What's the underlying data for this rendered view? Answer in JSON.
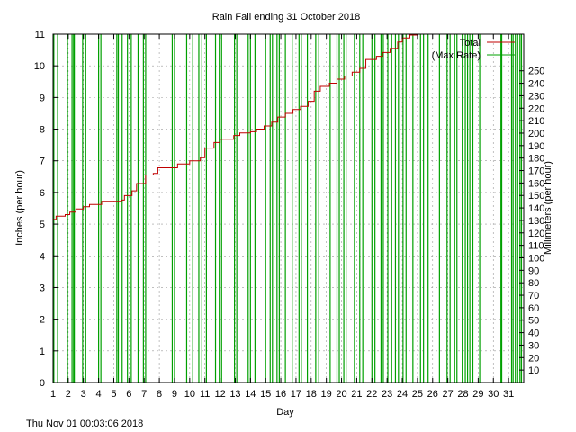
{
  "chart_data": {
    "type": "line",
    "title": "Rain Fall ending 31 October 2018",
    "xlabel": "Day",
    "ylabel": "Inches (per hour)",
    "y2label": "Millimeters (per hour)",
    "xlim": [
      1,
      32
    ],
    "ylim": [
      0,
      11
    ],
    "y2lim": [
      0,
      279.4
    ],
    "x_ticks": [
      "1",
      "2",
      "3",
      "4",
      "5",
      "6",
      "7",
      "8",
      "9",
      "10",
      "11",
      "12",
      "13",
      "14",
      "15",
      "16",
      "17",
      "18",
      "19",
      "20",
      "21",
      "22",
      "23",
      "24",
      "25",
      "26",
      "27",
      "28",
      "29",
      "30",
      "31"
    ],
    "y_ticks": [
      "0",
      "1",
      "2",
      "3",
      "4",
      "5",
      "6",
      "7",
      "8",
      "9",
      "10",
      "11"
    ],
    "y2_ticks": [
      "10",
      "20",
      "30",
      "40",
      "50",
      "60",
      "70",
      "80",
      "90",
      "100",
      "110",
      "120",
      "130",
      "140",
      "150",
      "160",
      "170",
      "180",
      "190",
      "200",
      "210",
      "220",
      "230",
      "240",
      "250"
    ],
    "grid": true,
    "legend_position": "top-right",
    "series": [
      {
        "name": "Total",
        "color": "#c00000",
        "axis": "left",
        "points": [
          [
            1.0,
            5.15
          ],
          [
            1.2,
            5.25
          ],
          [
            1.8,
            5.3
          ],
          [
            2.1,
            5.38
          ],
          [
            2.5,
            5.48
          ],
          [
            3.0,
            5.55
          ],
          [
            3.4,
            5.62
          ],
          [
            4.2,
            5.72
          ],
          [
            5.5,
            5.76
          ],
          [
            5.7,
            5.9
          ],
          [
            6.2,
            6.05
          ],
          [
            6.5,
            6.28
          ],
          [
            7.1,
            6.55
          ],
          [
            7.6,
            6.6
          ],
          [
            7.9,
            6.78
          ],
          [
            9.2,
            6.9
          ],
          [
            10.0,
            7.0
          ],
          [
            10.7,
            7.1
          ],
          [
            11.0,
            7.4
          ],
          [
            11.6,
            7.58
          ],
          [
            12.0,
            7.68
          ],
          [
            12.9,
            7.8
          ],
          [
            13.3,
            7.88
          ],
          [
            14.0,
            7.92
          ],
          [
            14.4,
            8.0
          ],
          [
            14.9,
            8.1
          ],
          [
            15.4,
            8.22
          ],
          [
            15.8,
            8.38
          ],
          [
            16.3,
            8.5
          ],
          [
            16.8,
            8.62
          ],
          [
            17.3,
            8.72
          ],
          [
            17.8,
            8.88
          ],
          [
            18.2,
            9.2
          ],
          [
            18.6,
            9.35
          ],
          [
            19.2,
            9.45
          ],
          [
            19.7,
            9.58
          ],
          [
            20.2,
            9.68
          ],
          [
            20.7,
            9.8
          ],
          [
            21.2,
            9.92
          ],
          [
            21.6,
            10.2
          ],
          [
            22.3,
            10.3
          ],
          [
            22.7,
            10.42
          ],
          [
            23.2,
            10.55
          ],
          [
            23.7,
            10.75
          ],
          [
            24.0,
            10.88
          ],
          [
            24.5,
            10.97
          ],
          [
            25.0,
            11.0
          ]
        ]
      },
      {
        "name": "(Max Rate)",
        "color": "#00a000",
        "axis": "right",
        "spikes": [
          [
            1.05,
            1.3
          ],
          [
            1.95,
            2.4
          ],
          [
            2.25,
            2.35
          ],
          [
            2.95,
            3.15
          ],
          [
            4.0,
            4.15
          ],
          [
            5.2,
            5.3
          ],
          [
            5.55,
            5.9
          ],
          [
            6.15,
            6.6
          ],
          [
            6.95,
            7.1
          ],
          [
            8.85,
            9.0
          ],
          [
            9.8,
            10.2
          ],
          [
            10.6,
            10.8
          ],
          [
            11.1,
            11.7
          ],
          [
            11.95,
            12.1
          ],
          [
            12.95,
            13.1
          ],
          [
            13.85,
            14.0
          ],
          [
            14.3,
            15.0
          ],
          [
            15.3,
            15.45
          ],
          [
            15.75,
            15.9
          ],
          [
            16.3,
            16.75
          ],
          [
            17.2,
            17.35
          ],
          [
            17.75,
            18.3
          ],
          [
            18.5,
            19.25
          ],
          [
            19.7,
            19.85
          ],
          [
            20.15,
            20.3
          ],
          [
            20.85,
            21.2
          ],
          [
            21.4,
            22.0
          ],
          [
            22.2,
            22.6
          ],
          [
            22.75,
            23.05
          ],
          [
            23.3,
            23.55
          ],
          [
            23.75,
            24.05
          ],
          [
            24.25,
            24.7
          ],
          [
            25.2,
            25.4
          ],
          [
            25.7,
            26.45
          ],
          [
            26.95,
            27.15
          ],
          [
            27.45,
            27.6
          ],
          [
            27.95,
            28.15
          ],
          [
            28.3,
            28.45
          ],
          [
            28.65,
            29.1
          ],
          [
            30.5,
            30.55
          ],
          [
            31.2,
            31.3
          ],
          [
            31.45,
            31.6
          ],
          [
            31.75,
            31.85
          ]
        ]
      }
    ]
  },
  "footer": {
    "timestamp": "Thu Nov 01 00:03:06 2018"
  }
}
